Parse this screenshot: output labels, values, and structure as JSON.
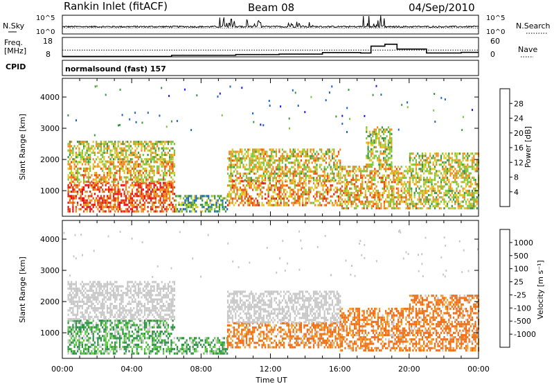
{
  "header": {
    "station": "Rankin Inlet (fitACF)",
    "beam": "Beam 08",
    "date": "04/Sep/2010"
  },
  "strip_labels": {
    "nsky": "N.Sky",
    "freq_line1": "Freq.",
    "freq_line2": "[MHz]",
    "cpid": "CPID",
    "nsearch": "N.Search",
    "nave": "Nave",
    "cpid_value": "normalsound (fast) 157"
  },
  "chart_data": [
    {
      "type": "line",
      "name": "noise-strip",
      "yticks_left": [
        "10^5",
        "10^0"
      ],
      "yticks_right": [
        "10^5",
        "10^0"
      ],
      "x_range_hours": [
        0,
        24
      ],
      "description_values": {
        "baseline_level": 0.35,
        "bursts": [
          [
            9.0,
            10.0,
            0.9
          ],
          [
            10.5,
            11.5,
            0.8
          ],
          [
            17.3,
            19.0,
            1.0
          ],
          [
            13.0,
            14.5,
            0.7
          ]
        ]
      }
    },
    {
      "type": "line",
      "name": "freq-nave-strip",
      "yticks_left": [
        "18",
        "8"
      ],
      "yticks_right": [
        "60",
        "0"
      ],
      "freq_steps": [
        [
          0,
          8.2
        ],
        [
          6.3,
          8.8
        ],
        [
          10,
          9.2
        ],
        [
          12.5,
          9.4
        ],
        [
          15,
          10.2
        ],
        [
          17.2,
          10.0
        ],
        [
          17.8,
          13.5
        ],
        [
          18.6,
          14.5
        ],
        [
          19.3,
          12.0
        ],
        [
          21.0,
          10.0
        ],
        [
          23.0,
          10.3
        ],
        [
          24,
          10.3
        ]
      ],
      "nave_dotted_level": 11.5
    },
    {
      "type": "heatmap",
      "name": "power",
      "ylabel": "Slant Range [km]",
      "yticks": [
        1000,
        2000,
        3000,
        4000
      ],
      "ylim": [
        180,
        4600
      ],
      "xlim_hours": [
        0,
        24
      ],
      "colorbar": {
        "label": "Power [dB]",
        "ticks": [
          4,
          8,
          12,
          16,
          20,
          24,
          28
        ],
        "colors": [
          "#1a1aff",
          "#1e64c8",
          "#3c9646",
          "#78c83c",
          "#dcc828",
          "#f08c1e",
          "#e65014",
          "#e61414"
        ]
      },
      "regions": [
        {
          "t0": 0.3,
          "t1": 6.5,
          "r0": 300,
          "r1": 1250,
          "v": 26
        },
        {
          "t0": 0.3,
          "t1": 6.5,
          "r0": 1250,
          "r1": 1900,
          "v": 20
        },
        {
          "t0": 0.3,
          "t1": 6.5,
          "r0": 1900,
          "r1": 2600,
          "v": 17
        },
        {
          "t0": 6.5,
          "t1": 9.5,
          "r0": 300,
          "r1": 800,
          "v": 12
        },
        {
          "t0": 9.5,
          "t1": 16.0,
          "r0": 500,
          "r1": 1300,
          "v": 22
        },
        {
          "t0": 9.5,
          "t1": 16.0,
          "r0": 1300,
          "r1": 2300,
          "v": 18
        },
        {
          "t0": 16.0,
          "t1": 20.0,
          "r0": 400,
          "r1": 1800,
          "v": 20
        },
        {
          "t0": 17.5,
          "t1": 19.0,
          "r0": 1800,
          "r1": 3000,
          "v": 16
        },
        {
          "t0": 20.0,
          "t1": 24.0,
          "r0": 400,
          "r1": 2200,
          "v": 17
        }
      ]
    },
    {
      "type": "heatmap",
      "name": "velocity",
      "ylabel": "Slant Range [km]",
      "yticks": [
        1000,
        2000,
        3000,
        4000
      ],
      "ylim": [
        180,
        4600
      ],
      "xlim_hours": [
        0,
        24
      ],
      "xticks": [
        "00:00",
        "04:00",
        "08:00",
        "12:00",
        "16:00",
        "20:00",
        "00:00"
      ],
      "xlabel": "Time UT",
      "colorbar": {
        "label": "Velocity [m s⁻¹]",
        "ticks": [
          "1000",
          "500",
          "100",
          "25",
          "-25",
          "-100",
          "-500",
          "-1000"
        ],
        "colors": [
          "#1e3cb4",
          "#2873b4",
          "#2d9146",
          "#5ac83c",
          "#c8c8c8",
          "#f0a028",
          "#f06e14",
          "#e64614",
          "#e61414"
        ]
      },
      "regions": [
        {
          "t0": 0.3,
          "t1": 6.5,
          "r0": 300,
          "r1": 1400,
          "v": 100
        },
        {
          "t0": 0.3,
          "t1": 6.5,
          "r0": 1400,
          "r1": 2600,
          "v": 0
        },
        {
          "t0": 6.5,
          "t1": 9.5,
          "r0": 300,
          "r1": 800,
          "v": 100
        },
        {
          "t0": 9.5,
          "t1": 16.0,
          "r0": 500,
          "r1": 1300,
          "v": -150
        },
        {
          "t0": 9.5,
          "t1": 16.0,
          "r0": 1300,
          "r1": 2300,
          "v": 0
        },
        {
          "t0": 16.0,
          "t1": 20.0,
          "r0": 400,
          "r1": 1800,
          "v": -150
        },
        {
          "t0": 20.0,
          "t1": 24.0,
          "r0": 400,
          "r1": 2200,
          "v": -200
        }
      ]
    }
  ]
}
